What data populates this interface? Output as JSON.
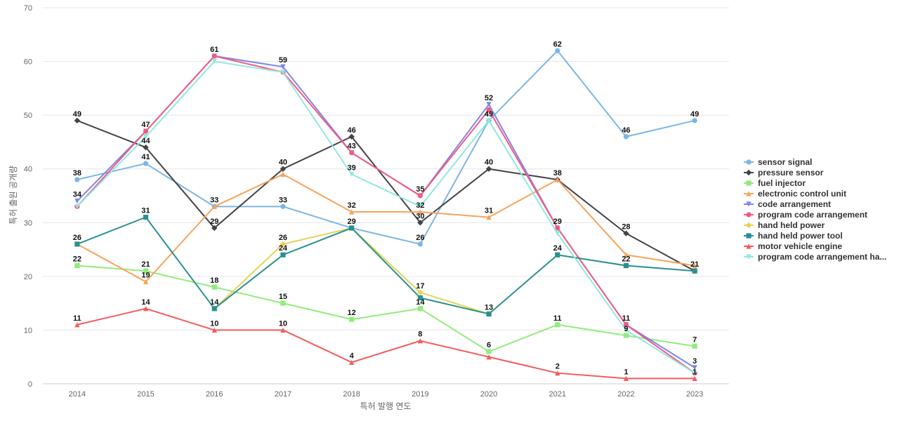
{
  "chart_data": {
    "type": "line",
    "title": "",
    "xlabel": "특허 발행 연도",
    "ylabel": "특허 출원 공개량",
    "ylim": [
      0,
      70
    ],
    "yticks": [
      0,
      10,
      20,
      30,
      40,
      50,
      60,
      70
    ],
    "grid": "horizontal",
    "legend_position": "right",
    "categories": [
      "2014",
      "2015",
      "2016",
      "2017",
      "2018",
      "2019",
      "2020",
      "2021",
      "2022",
      "2023"
    ],
    "series": [
      {
        "name": "sensor signal",
        "color": "#7cb5e6",
        "marker": "circle",
        "values": [
          38,
          41,
          33,
          33,
          29,
          26,
          49,
          62,
          46,
          49
        ]
      },
      {
        "name": "pressure sensor",
        "color": "#434348",
        "marker": "diamond",
        "values": [
          49,
          44,
          29,
          40,
          46,
          30,
          40,
          38,
          28,
          21
        ]
      },
      {
        "name": "fuel injector",
        "color": "#90ed7d",
        "marker": "square",
        "values": [
          22,
          21,
          18,
          15,
          12,
          14,
          6,
          11,
          9,
          7
        ]
      },
      {
        "name": "electronic control unit",
        "color": "#f7a35c",
        "marker": "triangle",
        "values": [
          26,
          19,
          33,
          39,
          32,
          32,
          31,
          38,
          24,
          22
        ]
      },
      {
        "name": "code arrangement",
        "color": "#8085e9",
        "marker": "triangle-down",
        "values": [
          34,
          47,
          61,
          59,
          43,
          35,
          52,
          29,
          11,
          3
        ]
      },
      {
        "name": "program code arrangement",
        "color": "#f15c80",
        "marker": "circle",
        "values": [
          33,
          47,
          61,
          58,
          43,
          35,
          51,
          29,
          11,
          2
        ]
      },
      {
        "name": "hand held power",
        "color": "#e4d354",
        "marker": "diamond",
        "values": [
          null,
          null,
          14,
          26,
          29,
          17,
          13,
          null,
          null,
          null
        ]
      },
      {
        "name": "hand held power tool",
        "color": "#2b908f",
        "marker": "square",
        "values": [
          26,
          31,
          14,
          24,
          29,
          16,
          13,
          24,
          22,
          21
        ]
      },
      {
        "name": "motor vehicle engine",
        "color": "#f45b5b",
        "marker": "triangle",
        "values": [
          11,
          14,
          10,
          10,
          4,
          8,
          5,
          2,
          1,
          1
        ]
      },
      {
        "name": "program code arrangement ha...",
        "color": "#91e8e1",
        "marker": "triangle-down",
        "values": [
          33,
          46,
          60,
          58,
          39,
          33,
          49,
          28,
          10,
          2
        ]
      }
    ],
    "data_labels": [
      {
        "series": 0,
        "point": 0,
        "text": "38"
      },
      {
        "series": 0,
        "point": 1,
        "text": "41"
      },
      {
        "series": 0,
        "point": 2,
        "text": "33"
      },
      {
        "series": 0,
        "point": 3,
        "text": "33"
      },
      {
        "series": 0,
        "point": 5,
        "text": "26"
      },
      {
        "series": 0,
        "point": 6,
        "text": "49"
      },
      {
        "series": 0,
        "point": 7,
        "text": "62"
      },
      {
        "series": 0,
        "point": 8,
        "text": "46"
      },
      {
        "series": 0,
        "point": 9,
        "text": "49"
      },
      {
        "series": 1,
        "point": 0,
        "text": "49"
      },
      {
        "series": 1,
        "point": 1,
        "text": "44"
      },
      {
        "series": 1,
        "point": 2,
        "text": "29"
      },
      {
        "series": 1,
        "point": 3,
        "text": "40"
      },
      {
        "series": 1,
        "point": 4,
        "text": "46"
      },
      {
        "series": 1,
        "point": 5,
        "text": "30"
      },
      {
        "series": 1,
        "point": 6,
        "text": "40"
      },
      {
        "series": 1,
        "point": 7,
        "text": "38"
      },
      {
        "series": 1,
        "point": 8,
        "text": "28"
      },
      {
        "series": 1,
        "point": 9,
        "text": "21"
      },
      {
        "series": 2,
        "point": 0,
        "text": "22"
      },
      {
        "series": 2,
        "point": 1,
        "text": "21"
      },
      {
        "series": 2,
        "point": 2,
        "text": "18"
      },
      {
        "series": 2,
        "point": 3,
        "text": "15"
      },
      {
        "series": 2,
        "point": 4,
        "text": "12"
      },
      {
        "series": 2,
        "point": 5,
        "text": "14"
      },
      {
        "series": 2,
        "point": 6,
        "text": "6"
      },
      {
        "series": 2,
        "point": 7,
        "text": "11"
      },
      {
        "series": 2,
        "point": 8,
        "text": "9"
      },
      {
        "series": 2,
        "point": 9,
        "text": "7"
      },
      {
        "series": 3,
        "point": 1,
        "text": "19"
      },
      {
        "series": 3,
        "point": 4,
        "text": "32"
      },
      {
        "series": 3,
        "point": 5,
        "text": "32"
      },
      {
        "series": 3,
        "point": 6,
        "text": "31"
      },
      {
        "series": 4,
        "point": 0,
        "text": "34"
      },
      {
        "series": 4,
        "point": 1,
        "text": "47"
      },
      {
        "series": 4,
        "point": 2,
        "text": "61"
      },
      {
        "series": 4,
        "point": 3,
        "text": "59"
      },
      {
        "series": 4,
        "point": 4,
        "text": "43"
      },
      {
        "series": 4,
        "point": 5,
        "text": "35"
      },
      {
        "series": 4,
        "point": 6,
        "text": "52"
      },
      {
        "series": 4,
        "point": 7,
        "text": "29"
      },
      {
        "series": 4,
        "point": 8,
        "text": "11"
      },
      {
        "series": 4,
        "point": 9,
        "text": "3"
      },
      {
        "series": 6,
        "point": 3,
        "text": "26"
      },
      {
        "series": 6,
        "point": 5,
        "text": "17"
      },
      {
        "series": 7,
        "point": 0,
        "text": "26"
      },
      {
        "series": 7,
        "point": 1,
        "text": "31"
      },
      {
        "series": 7,
        "point": 2,
        "text": "14"
      },
      {
        "series": 7,
        "point": 3,
        "text": "24"
      },
      {
        "series": 7,
        "point": 4,
        "text": "29"
      },
      {
        "series": 7,
        "point": 6,
        "text": "13"
      },
      {
        "series": 7,
        "point": 7,
        "text": "24"
      },
      {
        "series": 7,
        "point": 8,
        "text": "22"
      },
      {
        "series": 8,
        "point": 0,
        "text": "11"
      },
      {
        "series": 8,
        "point": 1,
        "text": "14"
      },
      {
        "series": 8,
        "point": 2,
        "text": "10"
      },
      {
        "series": 8,
        "point": 3,
        "text": "10"
      },
      {
        "series": 8,
        "point": 4,
        "text": "4"
      },
      {
        "series": 8,
        "point": 5,
        "text": "8"
      },
      {
        "series": 8,
        "point": 7,
        "text": "2"
      },
      {
        "series": 8,
        "point": 8,
        "text": "1"
      },
      {
        "series": 8,
        "point": 9,
        "text": "1"
      },
      {
        "series": 9,
        "point": 4,
        "text": "39"
      }
    ]
  }
}
